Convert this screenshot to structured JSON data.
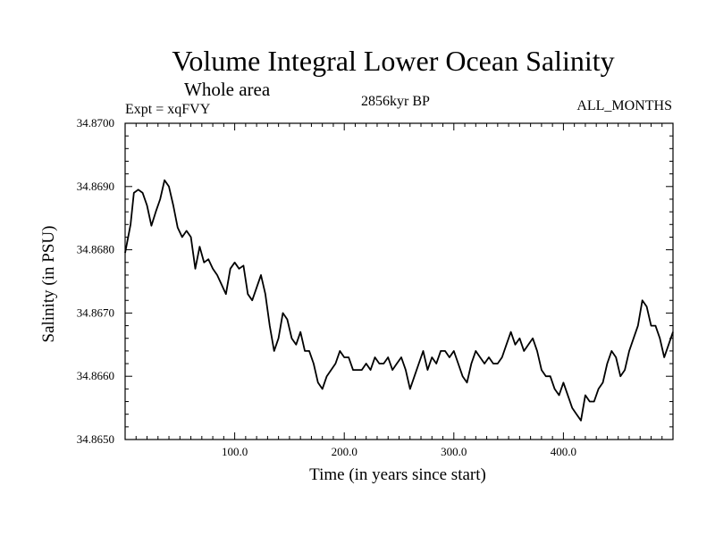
{
  "chart_data": {
    "type": "line",
    "title": "Volume Integral Lower Ocean Salinity",
    "subtitle": "Whole area",
    "experiment": "Expt = xqFVY",
    "period": "2856kyr BP",
    "months": "ALL_MONTHS",
    "xlabel": "Time (in years since start)",
    "ylabel": "Salinity (in PSU)",
    "xlim": [
      0,
      500
    ],
    "ylim": [
      34.865,
      34.87
    ],
    "x_ticks": [
      100,
      200,
      300,
      400
    ],
    "x_tick_labels": [
      "100.0",
      "200.0",
      "300.0",
      "400.0"
    ],
    "y_ticks": [
      34.865,
      34.866,
      34.867,
      34.868,
      34.869,
      34.87
    ],
    "y_tick_labels": [
      "34.8650",
      "34.8660",
      "34.8670",
      "34.8680",
      "34.8690",
      "34.8700"
    ],
    "series": [
      {
        "name": "Salinity",
        "points": [
          [
            0,
            34.86795
          ],
          [
            5,
            34.8684
          ],
          [
            8,
            34.8689
          ],
          [
            12,
            34.86895
          ],
          [
            16,
            34.8689
          ],
          [
            20,
            34.8687
          ],
          [
            24,
            34.86838
          ],
          [
            28,
            34.8686
          ],
          [
            32,
            34.8688
          ],
          [
            36,
            34.8691
          ],
          [
            40,
            34.869
          ],
          [
            44,
            34.8687
          ],
          [
            48,
            34.86835
          ],
          [
            52,
            34.8682
          ],
          [
            56,
            34.8683
          ],
          [
            60,
            34.8682
          ],
          [
            64,
            34.8677
          ],
          [
            68,
            34.86805
          ],
          [
            72,
            34.8678
          ],
          [
            76,
            34.86785
          ],
          [
            80,
            34.8677
          ],
          [
            84,
            34.8676
          ],
          [
            88,
            34.86745
          ],
          [
            92,
            34.8673
          ],
          [
            96,
            34.8677
          ],
          [
            100,
            34.8678
          ],
          [
            104,
            34.8677
          ],
          [
            108,
            34.86775
          ],
          [
            112,
            34.8673
          ],
          [
            116,
            34.8672
          ],
          [
            120,
            34.8674
          ],
          [
            124,
            34.8676
          ],
          [
            128,
            34.8673
          ],
          [
            132,
            34.8668
          ],
          [
            136,
            34.8664
          ],
          [
            140,
            34.8666
          ],
          [
            144,
            34.867
          ],
          [
            148,
            34.8669
          ],
          [
            152,
            34.8666
          ],
          [
            156,
            34.8665
          ],
          [
            160,
            34.8667
          ],
          [
            164,
            34.8664
          ],
          [
            168,
            34.8664
          ],
          [
            172,
            34.8662
          ],
          [
            176,
            34.8659
          ],
          [
            180,
            34.8658
          ],
          [
            184,
            34.866
          ],
          [
            188,
            34.8661
          ],
          [
            192,
            34.8662
          ],
          [
            196,
            34.8664
          ],
          [
            200,
            34.8663
          ],
          [
            204,
            34.8663
          ],
          [
            208,
            34.8661
          ],
          [
            212,
            34.8661
          ],
          [
            216,
            34.8661
          ],
          [
            220,
            34.8662
          ],
          [
            224,
            34.8661
          ],
          [
            228,
            34.8663
          ],
          [
            232,
            34.8662
          ],
          [
            236,
            34.8662
          ],
          [
            240,
            34.8663
          ],
          [
            244,
            34.8661
          ],
          [
            248,
            34.8662
          ],
          [
            252,
            34.8663
          ],
          [
            256,
            34.8661
          ],
          [
            260,
            34.8658
          ],
          [
            264,
            34.866
          ],
          [
            268,
            34.8662
          ],
          [
            272,
            34.8664
          ],
          [
            276,
            34.8661
          ],
          [
            280,
            34.8663
          ],
          [
            284,
            34.8662
          ],
          [
            288,
            34.8664
          ],
          [
            292,
            34.8664
          ],
          [
            296,
            34.8663
          ],
          [
            300,
            34.8664
          ],
          [
            304,
            34.8662
          ],
          [
            308,
            34.866
          ],
          [
            312,
            34.8659
          ],
          [
            316,
            34.8662
          ],
          [
            320,
            34.8664
          ],
          [
            324,
            34.8663
          ],
          [
            328,
            34.8662
          ],
          [
            332,
            34.8663
          ],
          [
            336,
            34.8662
          ],
          [
            340,
            34.8662
          ],
          [
            344,
            34.8663
          ],
          [
            348,
            34.8665
          ],
          [
            352,
            34.8667
          ],
          [
            356,
            34.8665
          ],
          [
            360,
            34.8666
          ],
          [
            364,
            34.8664
          ],
          [
            368,
            34.8665
          ],
          [
            372,
            34.8666
          ],
          [
            376,
            34.8664
          ],
          [
            380,
            34.8661
          ],
          [
            384,
            34.866
          ],
          [
            388,
            34.866
          ],
          [
            392,
            34.8658
          ],
          [
            396,
            34.8657
          ],
          [
            400,
            34.8659
          ],
          [
            404,
            34.8657
          ],
          [
            408,
            34.8655
          ],
          [
            412,
            34.8654
          ],
          [
            416,
            34.8653
          ],
          [
            420,
            34.8657
          ],
          [
            424,
            34.8656
          ],
          [
            428,
            34.8656
          ],
          [
            432,
            34.8658
          ],
          [
            436,
            34.8659
          ],
          [
            440,
            34.8662
          ],
          [
            444,
            34.8664
          ],
          [
            448,
            34.8663
          ],
          [
            452,
            34.866
          ],
          [
            456,
            34.8661
          ],
          [
            460,
            34.8664
          ],
          [
            464,
            34.8666
          ],
          [
            468,
            34.8668
          ],
          [
            472,
            34.8672
          ],
          [
            476,
            34.8671
          ],
          [
            480,
            34.8668
          ],
          [
            484,
            34.8668
          ],
          [
            488,
            34.8666
          ],
          [
            492,
            34.8663
          ],
          [
            496,
            34.8665
          ],
          [
            500,
            34.8667
          ]
        ]
      }
    ]
  }
}
